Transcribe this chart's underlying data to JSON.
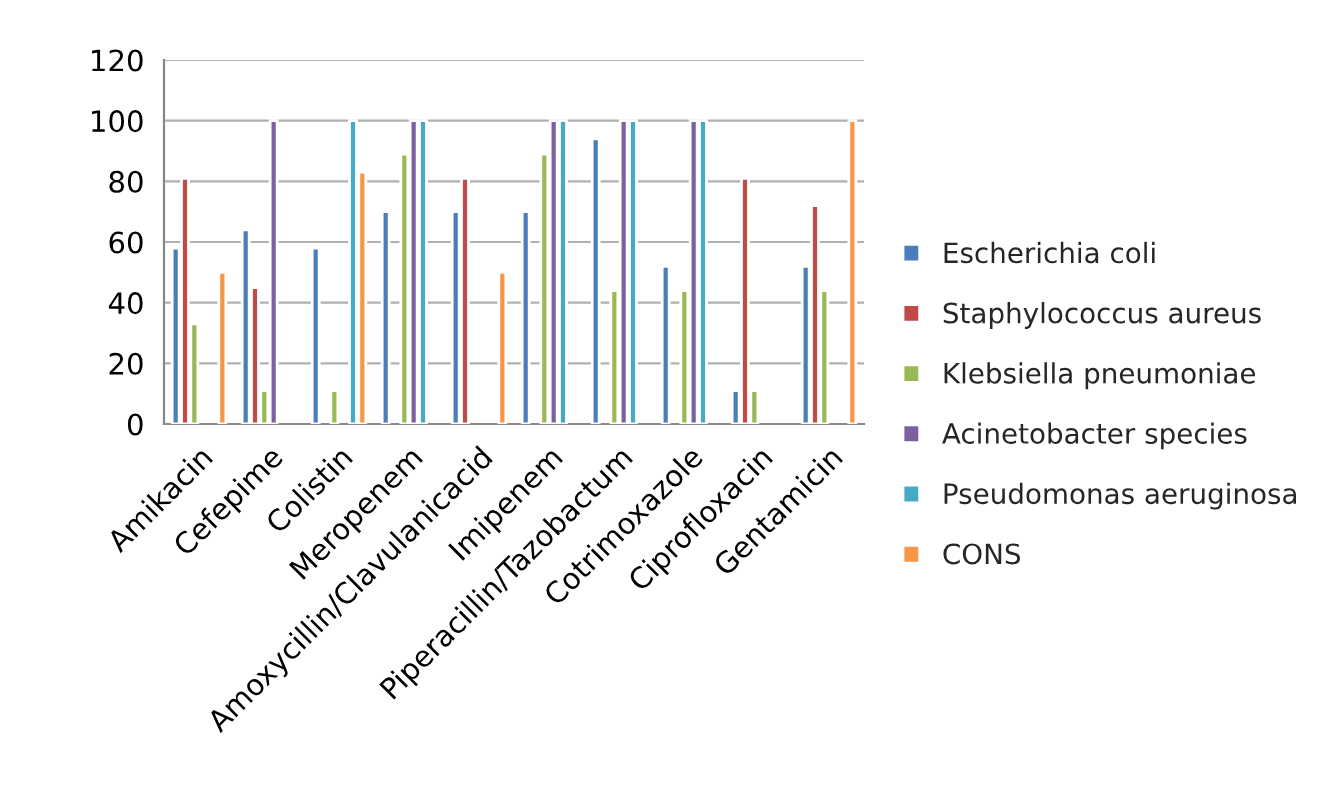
{
  "chart_data": {
    "type": "bar",
    "categories": [
      "Amikacin",
      "Cefepime",
      "Colistin",
      "Meropenem",
      "Amoxycillin/Clavulanicacid",
      "Imipenem",
      "Piperacillin/Tazobactum",
      "Cotrimoxazole",
      "Ciprofloxacin",
      "Gentamicin"
    ],
    "series": [
      {
        "name": "Escherichia coli",
        "color": "#4a7ebb",
        "values": [
          58,
          64,
          58,
          70,
          70,
          70,
          94,
          52,
          11,
          52
        ]
      },
      {
        "name": "Staphylococcus aureus",
        "color": "#be4b48",
        "values": [
          81,
          45,
          null,
          null,
          81,
          null,
          null,
          null,
          81,
          72
        ]
      },
      {
        "name": "Klebsiella pneumoniae",
        "color": "#98b954",
        "values": [
          33,
          11,
          11,
          89,
          null,
          89,
          44,
          44,
          11,
          44
        ]
      },
      {
        "name": "Acinetobacter species",
        "color": "#7d60a0",
        "values": [
          null,
          100,
          null,
          100,
          null,
          100,
          100,
          100,
          null,
          null
        ]
      },
      {
        "name": "Pseudomonas aeruginosa",
        "color": "#46aac5",
        "values": [
          null,
          null,
          100,
          100,
          null,
          100,
          100,
          100,
          null,
          null
        ]
      },
      {
        "name": "CONS",
        "color": "#f79646",
        "values": [
          50,
          null,
          83,
          null,
          50,
          null,
          null,
          null,
          null,
          100
        ]
      }
    ],
    "ylim": [
      0,
      120
    ],
    "yticks": [
      0,
      20,
      40,
      60,
      80,
      100,
      120
    ],
    "grid": "y",
    "legend": "right"
  }
}
